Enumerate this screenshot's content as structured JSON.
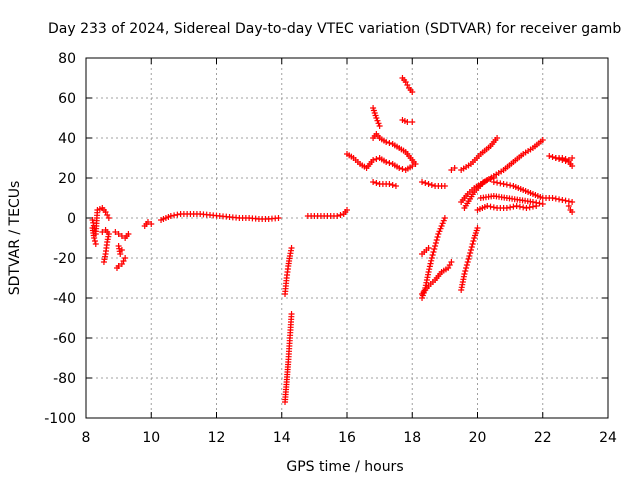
{
  "chart_data": {
    "type": "scatter",
    "title": "Day 233 of 2024, Sidereal Day-to-day VTEC variation (SDTVAR) for receiver gamb",
    "xlabel": "GPS time / hours",
    "ylabel": "SDTVAR / TECUs",
    "xlim": [
      8,
      24
    ],
    "ylim": [
      -100,
      80
    ],
    "xticks": [
      "8",
      "10",
      "12",
      "14",
      "16",
      "18",
      "20",
      "22",
      "24"
    ],
    "yticks": [
      "-100",
      "-80",
      "-60",
      "-40",
      "-20",
      "0",
      "20",
      "40",
      "60",
      "80"
    ],
    "grid": true,
    "marker": "plus",
    "color": "#ff0000",
    "segments": [
      {
        "x": [
          8.2,
          8.3,
          8.35,
          8.5,
          8.6,
          8.7
        ],
        "y": [
          -1,
          -8,
          4,
          5,
          3,
          0
        ]
      },
      {
        "x": [
          8.2,
          8.25,
          8.3
        ],
        "y": [
          -5,
          -10,
          -13
        ]
      },
      {
        "x": [
          8.5,
          8.6,
          8.7,
          8.65,
          8.6,
          8.55
        ],
        "y": [
          -7,
          -6,
          -8,
          -12,
          -18,
          -22
        ]
      },
      {
        "x": [
          8.9,
          9.0,
          9.1,
          9.2,
          9.3
        ],
        "y": [
          -7,
          -8,
          -9,
          -10,
          -8
        ]
      },
      {
        "x": [
          8.95,
          9.0,
          9.1,
          9.2
        ],
        "y": [
          -25,
          -24,
          -23,
          -20
        ]
      },
      {
        "x": [
          9.0,
          9.05,
          9.1
        ],
        "y": [
          -14,
          -18,
          -16
        ]
      },
      {
        "x": [
          9.8,
          9.9,
          10.0
        ],
        "y": [
          -4,
          -2,
          -3
        ]
      },
      {
        "x": [
          10.3,
          10.6,
          10.9,
          11.2,
          11.5,
          11.8,
          12.1,
          12.4,
          12.7,
          13.0,
          13.3,
          13.6,
          13.9
        ],
        "y": [
          -1,
          1,
          2,
          2,
          2,
          1.5,
          1,
          0.5,
          0,
          0,
          -0.5,
          -0.5,
          0
        ]
      },
      {
        "x": [
          14.1,
          14.15,
          14.2,
          14.25,
          14.3
        ],
        "y": [
          -38,
          -30,
          -24,
          -19,
          -15
        ]
      },
      {
        "x": [
          14.1,
          14.15,
          14.2,
          14.25,
          14.3
        ],
        "y": [
          -92,
          -82,
          -72,
          -60,
          -48
        ]
      },
      {
        "x": [
          14.8,
          15.1,
          15.4,
          15.7,
          15.9,
          16.0
        ],
        "y": [
          1,
          1,
          1,
          1,
          2,
          4
        ]
      },
      {
        "x": [
          16.0,
          16.2,
          16.4,
          16.6,
          16.8,
          17.0,
          17.2,
          17.4,
          17.6,
          17.8,
          18.0
        ],
        "y": [
          32,
          30,
          27,
          25,
          29,
          30,
          28,
          27,
          25,
          24,
          26
        ]
      },
      {
        "x": [
          16.8,
          16.9,
          17.0
        ],
        "y": [
          55,
          50,
          46
        ]
      },
      {
        "x": [
          16.8,
          16.9,
          17.0,
          17.2,
          17.4,
          17.6,
          17.8,
          18.0,
          18.1
        ],
        "y": [
          40,
          42,
          40,
          38,
          37,
          35,
          33,
          29,
          27
        ]
      },
      {
        "x": [
          16.8,
          17.0,
          17.3,
          17.5
        ],
        "y": [
          18,
          17,
          17,
          16
        ]
      },
      {
        "x": [
          17.7,
          17.8,
          17.9,
          18.0
        ],
        "y": [
          70,
          68,
          65,
          63
        ]
      },
      {
        "x": [
          17.7,
          17.85,
          18.0
        ],
        "y": [
          49,
          48,
          48
        ]
      },
      {
        "x": [
          18.3,
          18.5,
          18.7,
          18.9,
          19.0
        ],
        "y": [
          18,
          17,
          16,
          16,
          16
        ]
      },
      {
        "x": [
          18.3,
          18.5,
          18.7,
          18.9,
          19.1,
          19.2
        ],
        "y": [
          -38,
          -34,
          -31,
          -27,
          -25,
          -22
        ]
      },
      {
        "x": [
          18.3,
          18.4,
          18.5,
          18.6,
          18.7,
          18.8,
          18.9,
          19.0
        ],
        "y": [
          -40,
          -35,
          -27,
          -20,
          -14,
          -8,
          -4,
          0
        ]
      },
      {
        "x": [
          18.3,
          18.5
        ],
        "y": [
          -18,
          -15
        ]
      },
      {
        "x": [
          19.2,
          19.3
        ],
        "y": [
          24,
          25
        ]
      },
      {
        "x": [
          19.5,
          19.6,
          19.7,
          19.8,
          19.9,
          20.0
        ],
        "y": [
          -36,
          -28,
          -22,
          -16,
          -10,
          -5
        ]
      },
      {
        "x": [
          19.5,
          19.8,
          20.1,
          20.4,
          20.6
        ],
        "y": [
          24,
          27,
          32,
          36,
          40
        ]
      },
      {
        "x": [
          19.5,
          19.7,
          19.9,
          20.1,
          20.3,
          20.5
        ],
        "y": [
          8,
          12,
          15,
          17,
          19,
          20
        ]
      },
      {
        "x": [
          19.6,
          19.9,
          20.2,
          20.5,
          20.8,
          21.1,
          21.4,
          21.7,
          22.0
        ],
        "y": [
          5,
          13,
          18,
          21,
          24,
          28,
          32,
          35,
          39
        ]
      },
      {
        "x": [
          20.0,
          20.3,
          20.6,
          20.9,
          21.2,
          21.5,
          21.8
        ],
        "y": [
          4,
          6,
          5,
          5,
          6,
          5,
          6
        ]
      },
      {
        "x": [
          20.5,
          20.8,
          21.1,
          21.4,
          21.7,
          22.0,
          22.3,
          22.6,
          22.9
        ],
        "y": [
          18,
          17,
          16,
          14,
          12,
          10,
          10,
          9,
          8
        ]
      },
      {
        "x": [
          20.1,
          20.5,
          20.9,
          21.3,
          21.7,
          22.0
        ],
        "y": [
          10,
          11,
          10,
          9,
          8,
          7
        ]
      },
      {
        "x": [
          22.2,
          22.4,
          22.6,
          22.8,
          22.9
        ],
        "y": [
          31,
          30,
          29,
          28,
          26
        ]
      },
      {
        "x": [
          22.4,
          22.6,
          22.8,
          22.9
        ],
        "y": [
          30,
          30,
          29,
          30
        ]
      },
      {
        "x": [
          22.8,
          22.85,
          22.9
        ],
        "y": [
          6,
          4,
          3
        ]
      }
    ]
  }
}
